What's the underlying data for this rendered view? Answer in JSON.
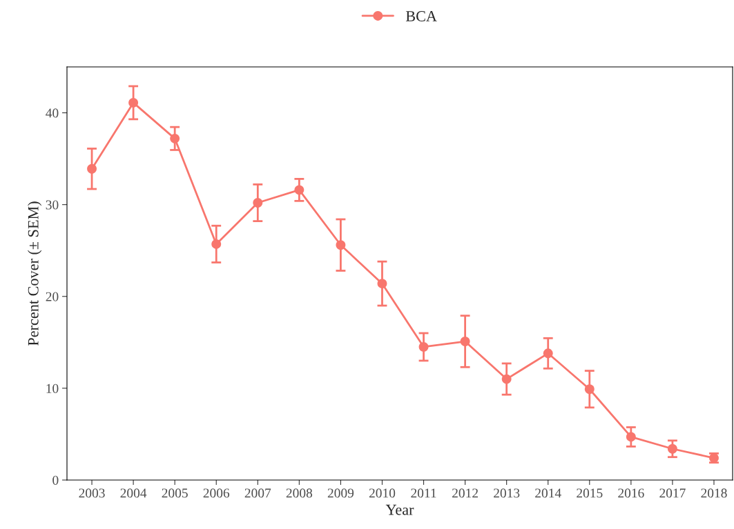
{
  "chart_data": {
    "type": "line",
    "xlabel": "Year",
    "ylabel": "Percent Cover (± SEM)",
    "x": [
      2003,
      2004,
      2005,
      2006,
      2007,
      2008,
      2009,
      2010,
      2011,
      2012,
      2013,
      2014,
      2015,
      2016,
      2017,
      2018
    ],
    "series": [
      {
        "name": "BCA",
        "color": "#f8766d",
        "values": [
          33.9,
          41.1,
          37.2,
          25.7,
          30.2,
          31.6,
          25.6,
          21.4,
          14.5,
          15.1,
          11.0,
          13.8,
          9.9,
          4.7,
          3.4,
          2.4
        ],
        "errors": [
          2.2,
          1.8,
          1.25,
          2.0,
          2.0,
          1.2,
          2.8,
          2.4,
          1.5,
          2.8,
          1.7,
          1.65,
          2.0,
          1.05,
          0.9,
          0.5
        ]
      }
    ],
    "xlim": [
      2002.4,
      2018.45
    ],
    "xticks": [
      2003,
      2004,
      2005,
      2006,
      2007,
      2008,
      2009,
      2010,
      2011,
      2012,
      2013,
      2014,
      2015,
      2016,
      2017,
      2018
    ],
    "ylim": [
      0,
      45
    ],
    "yticks": [
      0,
      10,
      20,
      30,
      40
    ],
    "grid": false,
    "legend": "top",
    "marker": "circle",
    "line_style": "solid"
  }
}
